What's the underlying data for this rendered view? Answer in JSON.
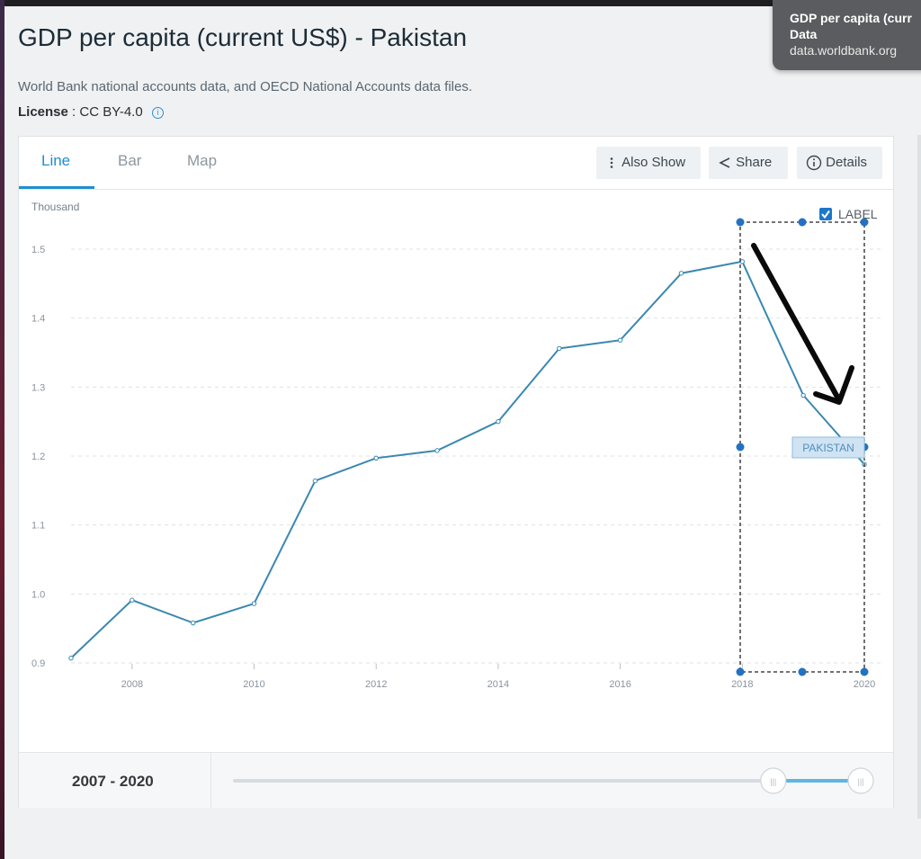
{
  "page": {
    "title": "GDP per capita (current US$) - Pakistan",
    "subtitle": "World Bank national accounts data, and OECD National Accounts data files.",
    "license_label": "License",
    "license_value": ": CC BY-4.0"
  },
  "tooltip": {
    "line1": "GDP per capita (curr",
    "line2": "Data",
    "line3": "data.worldbank.org"
  },
  "tabs": [
    {
      "label": "Line",
      "active": true
    },
    {
      "label": "Bar",
      "active": false
    },
    {
      "label": "Map",
      "active": false
    }
  ],
  "toolbar": {
    "also_show": "Also Show",
    "share": "Share",
    "details": "Details"
  },
  "label_toggle": {
    "text": "LABEL",
    "checked": true
  },
  "series_label": "PAKISTAN",
  "range": {
    "text": "2007 - 2020",
    "start": 2007,
    "end": 2020,
    "selected_start": 2018,
    "selected_end": 2020
  },
  "colors": {
    "line": "#3a88b0",
    "accent": "#1d8fcf",
    "handle": "#2272c3"
  },
  "chart_data": {
    "type": "line",
    "unit_label": "Thousand",
    "x": [
      2007,
      2008,
      2009,
      2010,
      2011,
      2012,
      2013,
      2014,
      2015,
      2016,
      2017,
      2018,
      2019,
      2020
    ],
    "series": [
      {
        "name": "PAKISTAN",
        "values": [
          0.907,
          0.991,
          0.958,
          0.986,
          1.164,
          1.197,
          1.208,
          1.25,
          1.356,
          1.368,
          1.465,
          1.482,
          1.288,
          1.188
        ]
      }
    ],
    "xticks": [
      "2008",
      "2010",
      "2012",
      "2014",
      "2016",
      "2018",
      "2020"
    ],
    "yticks": [
      "0.9",
      "1.0",
      "1.1",
      "1.2",
      "1.3",
      "1.4",
      "1.5"
    ],
    "ylim": [
      0.9,
      1.5
    ],
    "xlim": [
      2007,
      2020
    ],
    "grid": true
  }
}
